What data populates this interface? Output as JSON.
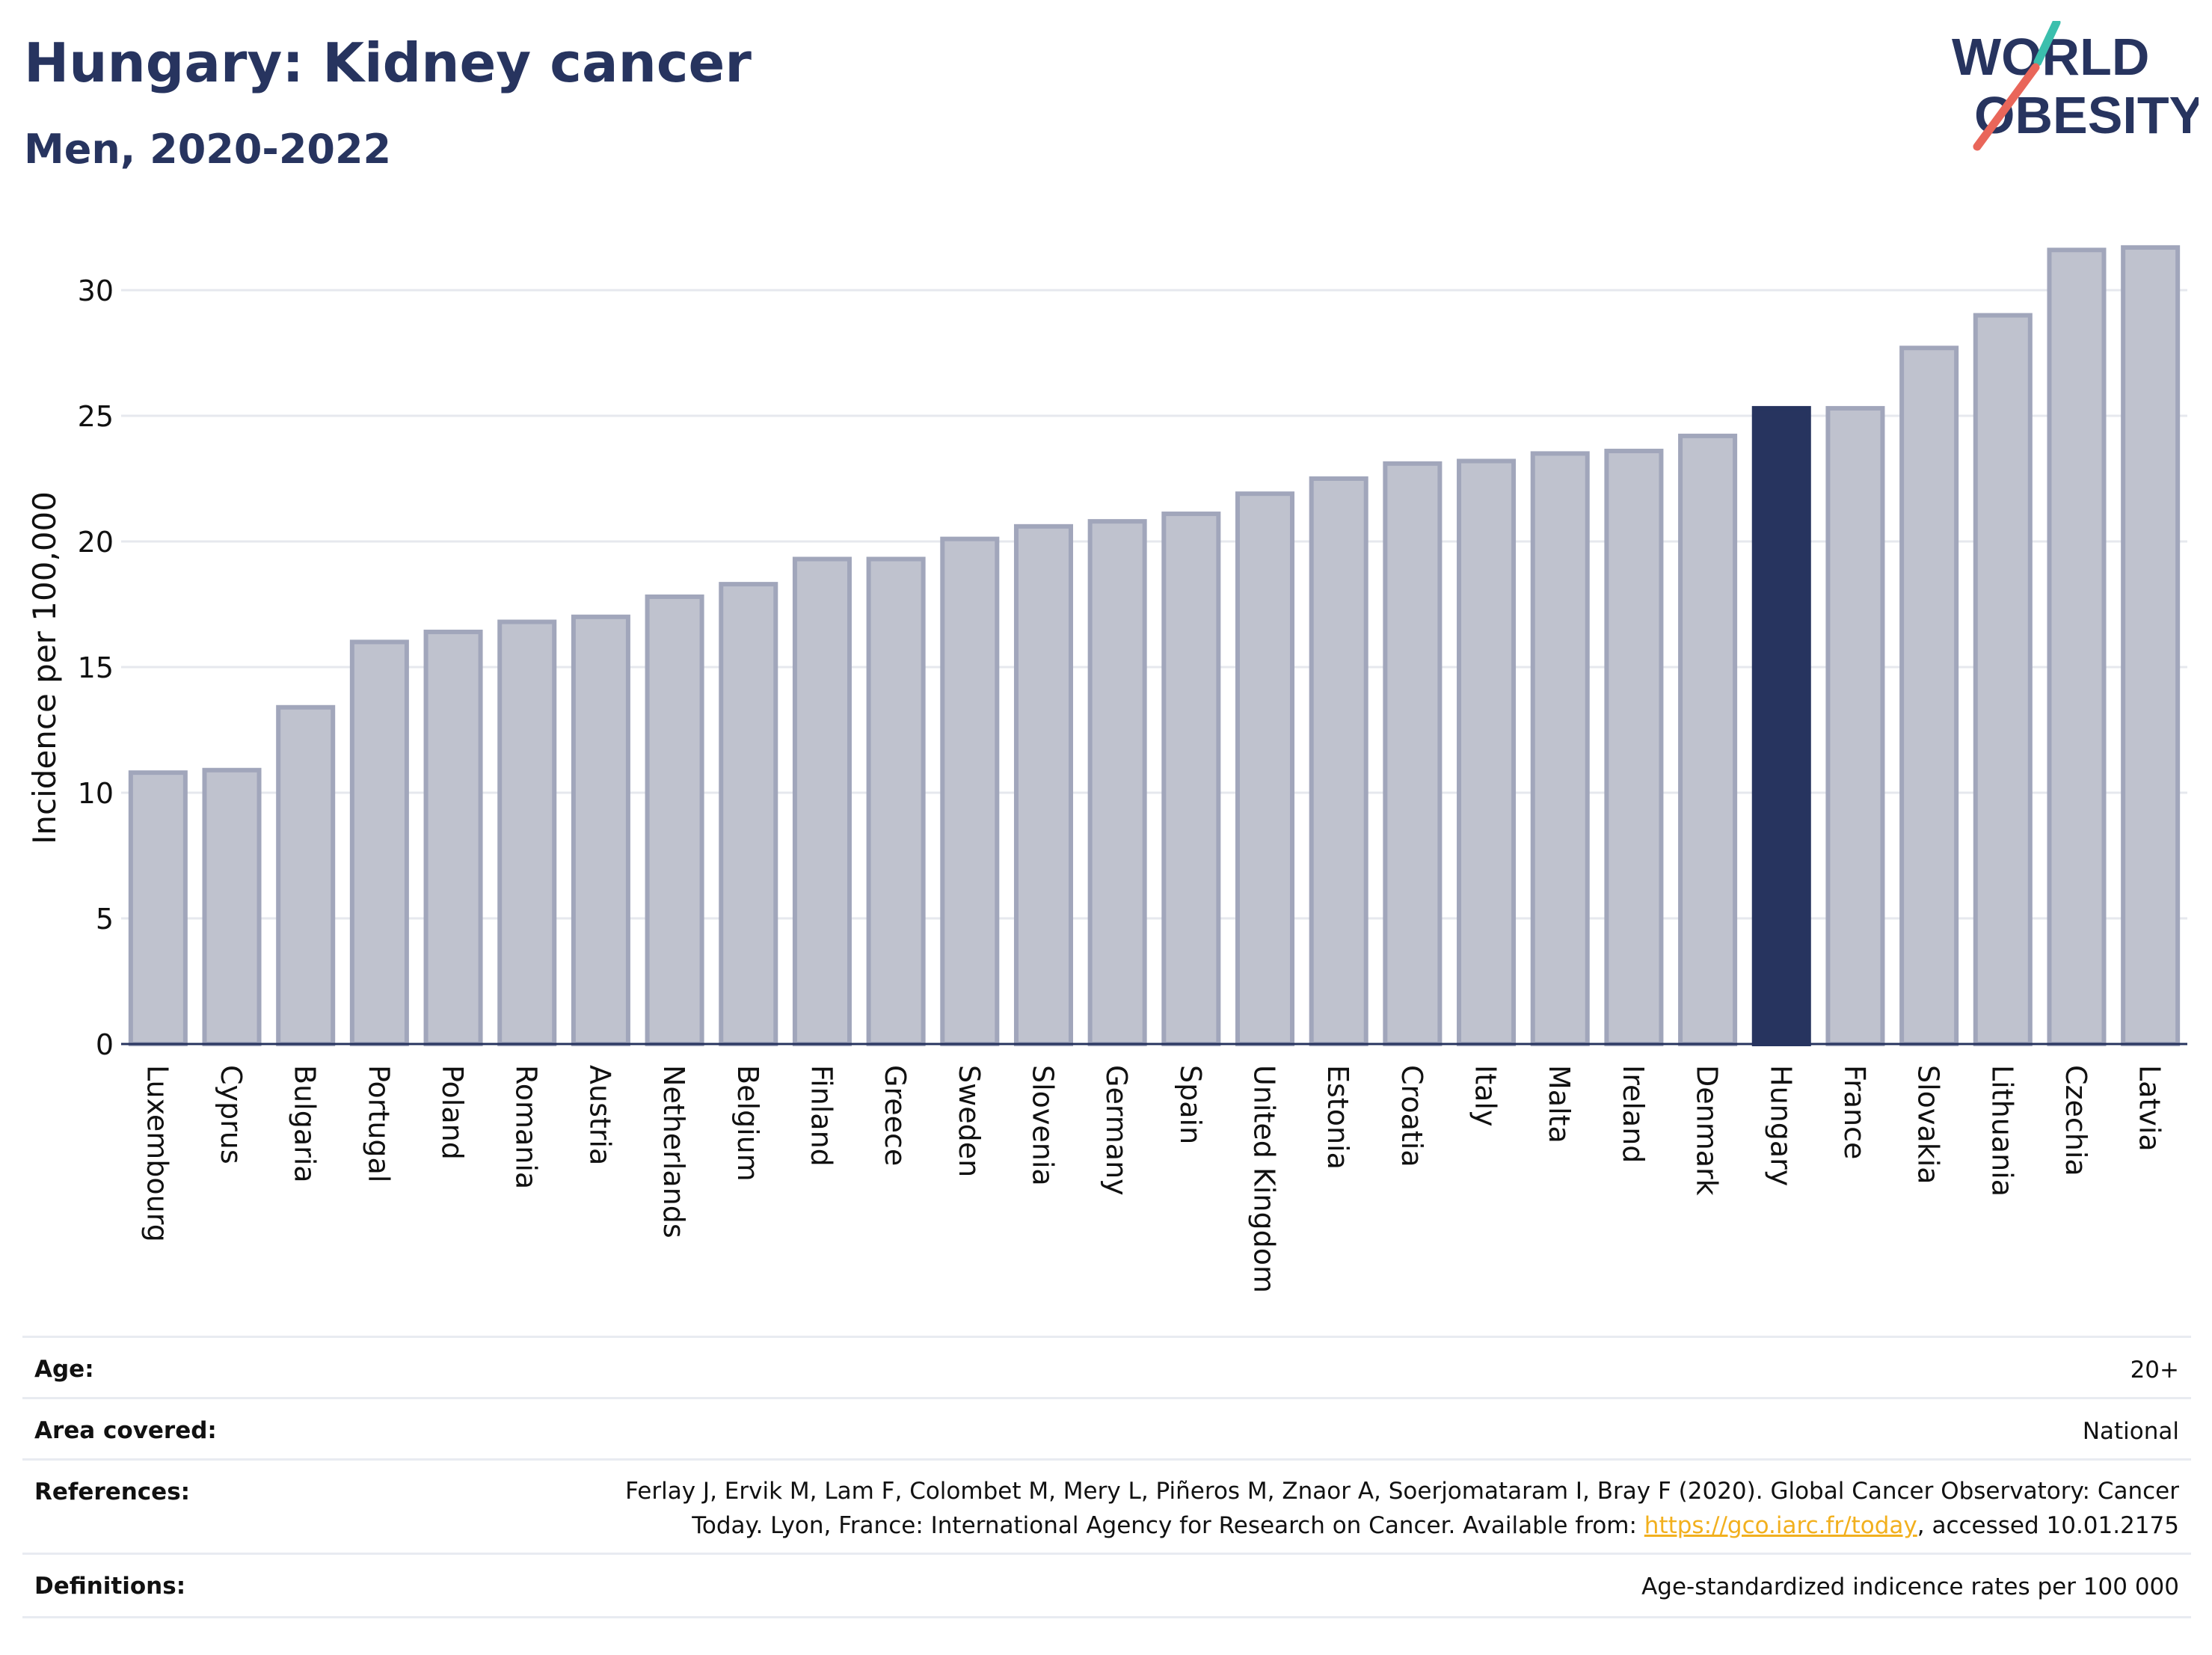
{
  "header": {
    "title": "Hungary: Kidney cancer",
    "subtitle": "Men, 2020-2022"
  },
  "logo": {
    "line1": "WORLD",
    "line2": "OBESITY",
    "accent_teal": "#3bbfad",
    "accent_coral": "#e9665a"
  },
  "colors": {
    "bar": "#bfc2ce",
    "bar_border": "#a1a6bb",
    "highlight": "#27345f",
    "grid": "#e6e8ee",
    "axis": "#27345f"
  },
  "chart_data": {
    "type": "bar",
    "ylabel": "Incidence per 100,000",
    "xlabel": "",
    "ylim": [
      0,
      32
    ],
    "yticks": [
      0,
      5,
      10,
      15,
      20,
      25,
      30
    ],
    "grid": true,
    "highlight": "Hungary",
    "categories": [
      "Luxembourg",
      "Cyprus",
      "Bulgaria",
      "Portugal",
      "Poland",
      "Romania",
      "Austria",
      "Netherlands",
      "Belgium",
      "Finland",
      "Greece",
      "Sweden",
      "Slovenia",
      "Germany",
      "Spain",
      "United Kingdom",
      "Estonia",
      "Croatia",
      "Italy",
      "Malta",
      "Ireland",
      "Denmark",
      "Hungary",
      "France",
      "Slovakia",
      "Lithuania",
      "Czechia",
      "Latvia"
    ],
    "values": [
      10.8,
      10.9,
      13.4,
      16.0,
      16.4,
      16.8,
      17.0,
      17.8,
      18.3,
      19.3,
      19.3,
      20.1,
      20.6,
      20.8,
      21.1,
      21.9,
      22.5,
      23.1,
      23.2,
      23.5,
      23.6,
      24.2,
      25.3,
      25.3,
      27.7,
      29.0,
      31.6,
      31.7
    ]
  },
  "meta": {
    "age_label": "Age:",
    "age_value": "20+",
    "area_label": "Area covered:",
    "area_value": "National",
    "references_label": "References:",
    "references_line1": "Ferlay J, Ervik M, Lam F, Colombet M, Mery L, Piñeros M, Znaor A, Soerjomataram I, Bray F (2020). Global Cancer Observatory: Cancer",
    "references_line2_pre": "Today. Lyon, France: International Agency for Research on Cancer. Available from: ",
    "references_link": "https://gco.iarc.fr/today",
    "references_line2_post": ", accessed 10.01.2175",
    "definitions_label": "Definitions:",
    "definitions_value": "Age-standardized indicence rates per 100 000"
  }
}
